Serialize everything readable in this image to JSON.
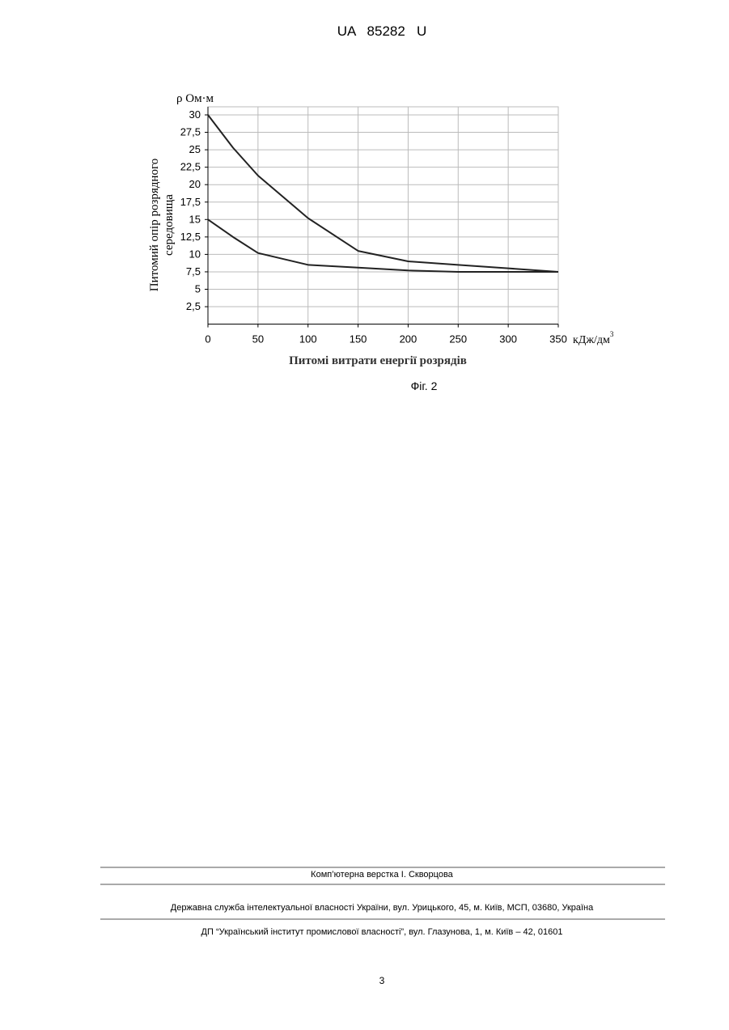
{
  "header": {
    "title": "UA   85282   U"
  },
  "chart_data": {
    "type": "line",
    "y_unit": "ρ Ом·м",
    "ylabel": [
      "Питомий опір розрядного",
      "середовища"
    ],
    "xlabel": "Питомі витрати енергії розрядів",
    "x_unit": {
      "base": "кДж/дм",
      "sup": "3"
    },
    "x": [
      0,
      25,
      50,
      100,
      150,
      200,
      250,
      300,
      350
    ],
    "series": [
      {
        "color": "#222222",
        "values": [
          30,
          25.3,
          21.3,
          15.2,
          10.5,
          9,
          8.5,
          8,
          7.5
        ]
      },
      {
        "color": "#222222",
        "values": [
          15,
          12.5,
          10.2,
          8.5,
          8.1,
          7.7,
          7.5,
          7.5,
          7.5
        ]
      }
    ],
    "xlim": [
      0,
      350
    ],
    "xticks": [
      0,
      50,
      100,
      150,
      200,
      250,
      300,
      350
    ],
    "ylim": [
      0,
      30
    ],
    "yticks": [
      {
        "value": 2.5,
        "label": "2,5"
      },
      5,
      {
        "value": 7.5,
        "label": "7,5"
      },
      10,
      {
        "value": 12.5,
        "label": "12,5"
      },
      15,
      {
        "value": 17.5,
        "label": "17,5"
      },
      20,
      {
        "value": 22.5,
        "label": "22,5"
      },
      25,
      {
        "value": 27.5,
        "label": "27,5"
      },
      30
    ],
    "grid": true
  },
  "caption": "Фіг. 2",
  "footer": {
    "lines": [
      "Комп’ютерна верстка І. Скворцова",
      "Державна служба інтелектуальної власності України, вул. Урицького, 45, м. Київ, МСП, 03680, Україна",
      "ДП “Український інститут промислової власності”, вул. Глазунова, 1, м. Київ – 42, 01601"
    ],
    "page": "3"
  }
}
